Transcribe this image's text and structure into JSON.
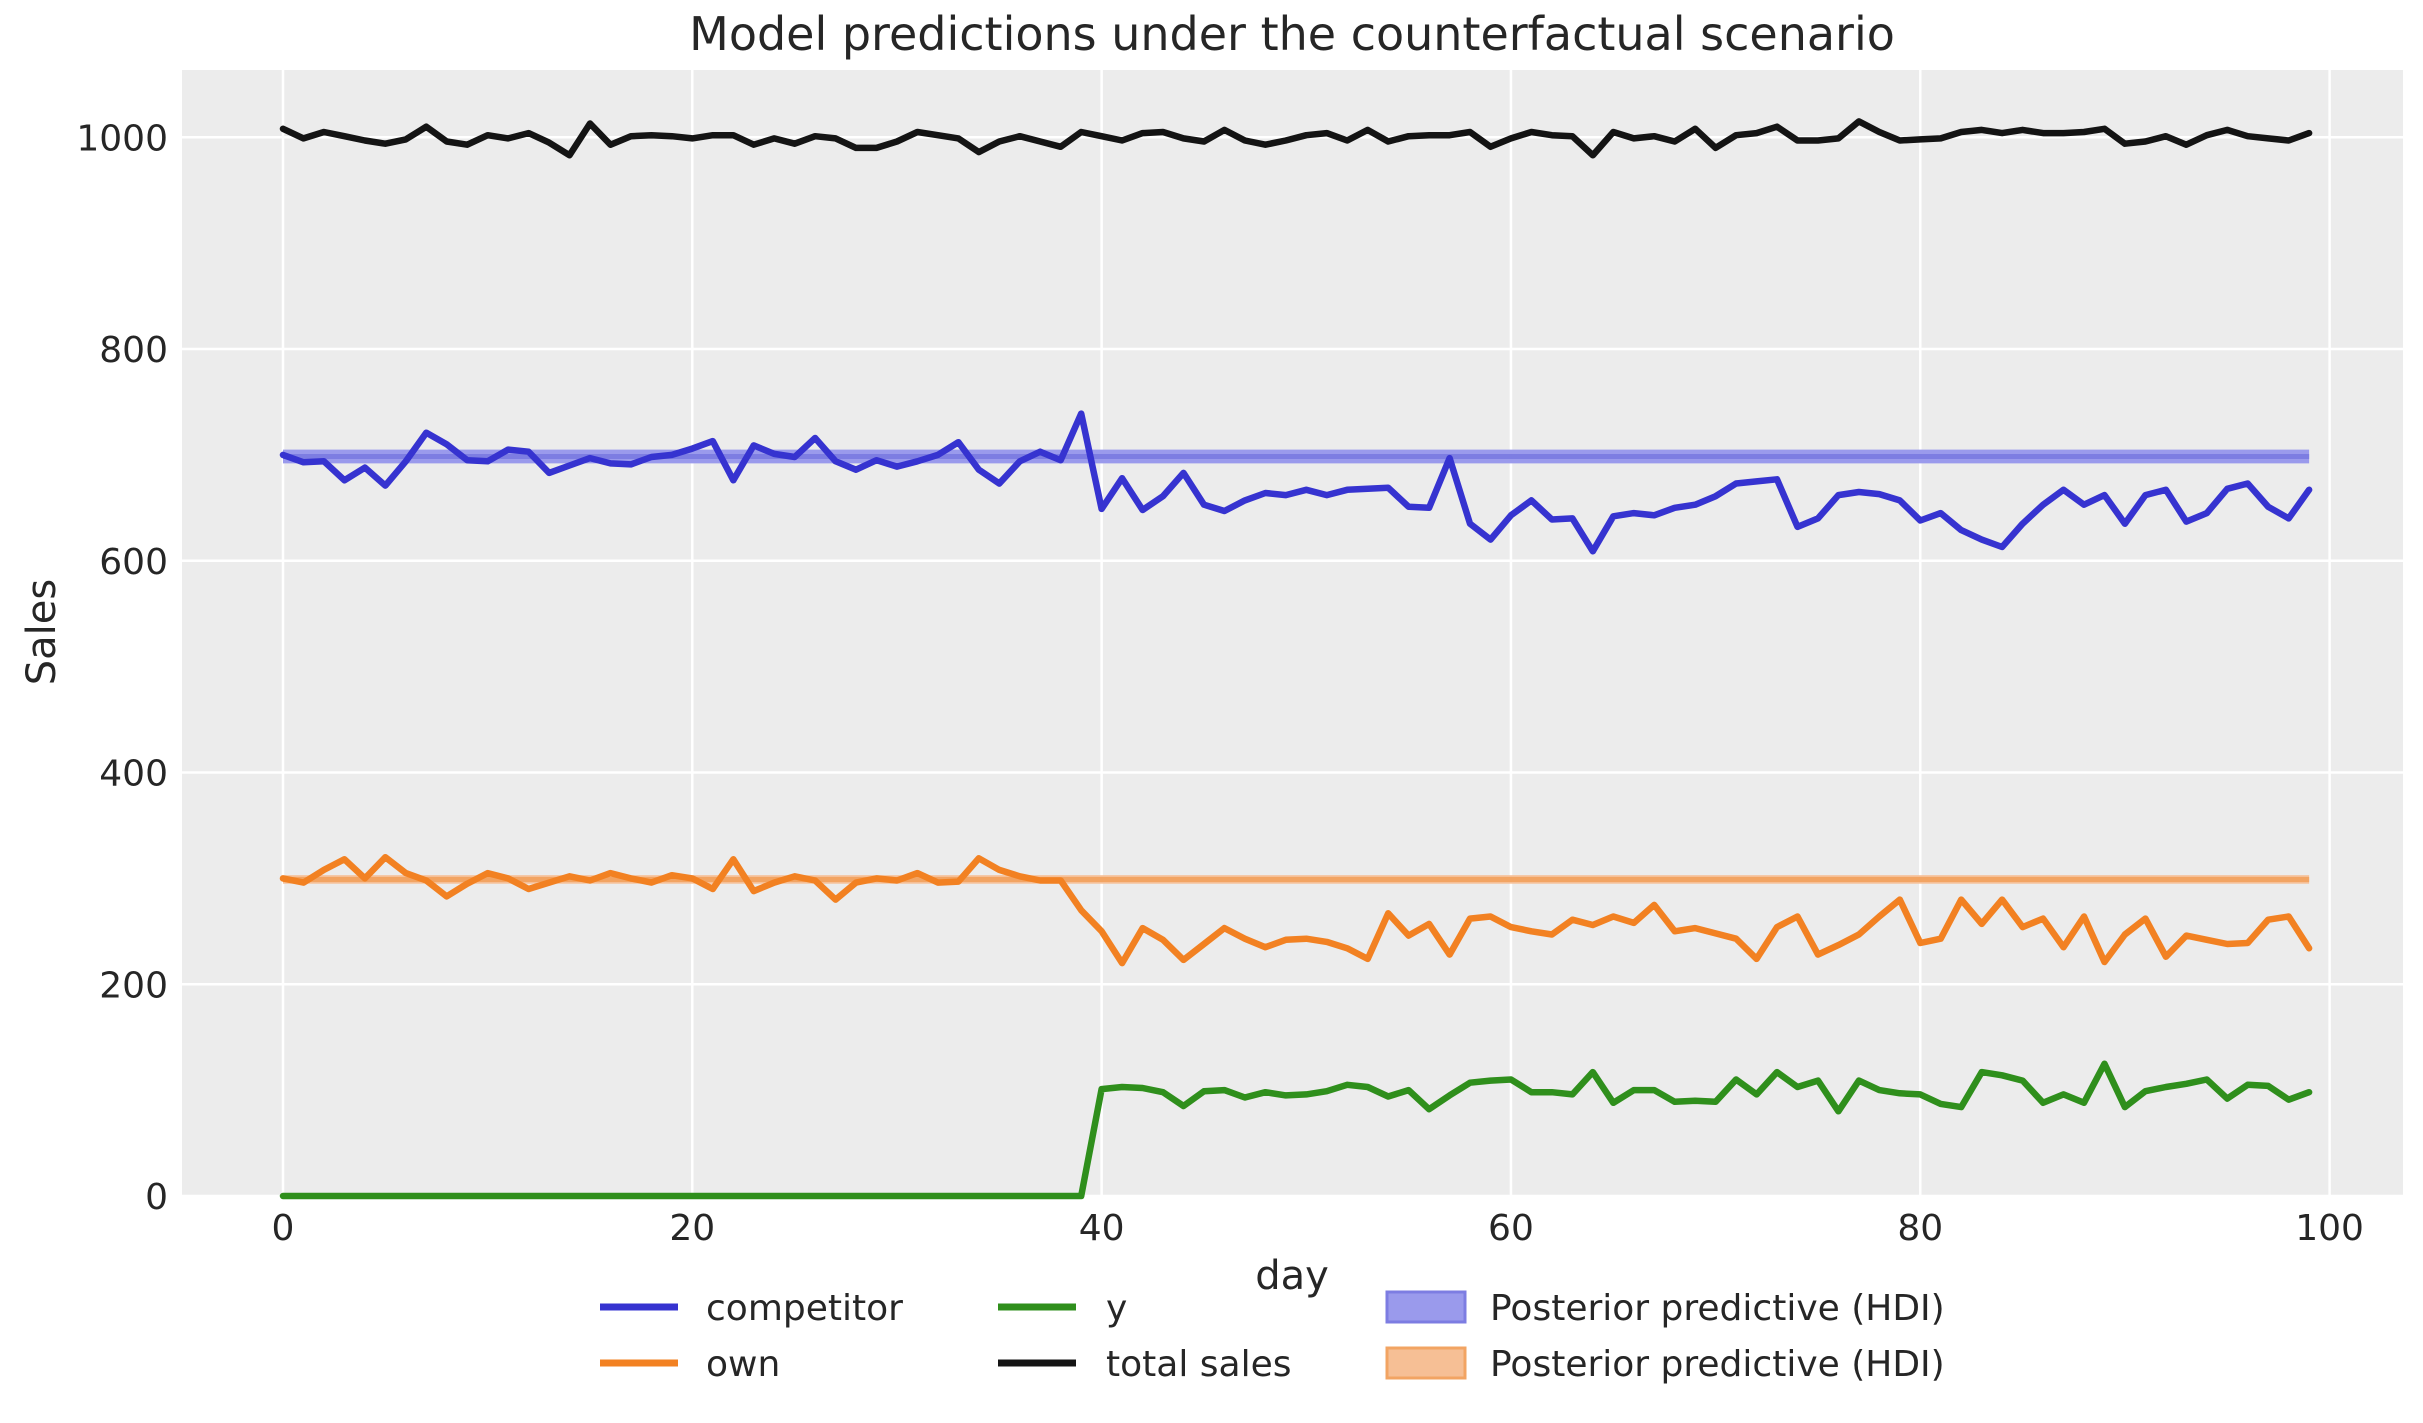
{
  "title": "Model predictions under the counterfactual scenario",
  "axes": {
    "xlabel": "day",
    "ylabel": "Sales",
    "x_ticks": [
      0,
      20,
      40,
      60,
      80,
      100
    ],
    "y_ticks": [
      0,
      200,
      400,
      600,
      800,
      1000
    ]
  },
  "colors": {
    "competitor": "#3633d0",
    "own": "#f28122",
    "y": "#2f8f1c",
    "total_sales": "#141414",
    "hdi_blue": "#9a9aec",
    "hdi_blue_line": "#7d7de2",
    "hdi_orange": "#f6bf95",
    "hdi_orange_line": "#f2a463",
    "axes_bg": "#ececec",
    "grid": "#ffffff",
    "text": "#262626"
  },
  "legend": {
    "rows": [
      [
        {
          "swatch": "line",
          "color_key": "competitor",
          "label": "competitor"
        },
        {
          "swatch": "line",
          "color_key": "y",
          "label": "y"
        },
        {
          "swatch": "patch",
          "color_key": "hdi_blue",
          "label": "Posterior predictive (HDI)"
        }
      ],
      [
        {
          "swatch": "line",
          "color_key": "own",
          "label": "own"
        },
        {
          "swatch": "line",
          "color_key": "total_sales",
          "label": "total sales"
        },
        {
          "swatch": "patch",
          "color_key": "hdi_orange",
          "label": "Posterior predictive (HDI)"
        }
      ]
    ]
  },
  "chart_data": {
    "type": "line",
    "title": "Model predictions under the counterfactual scenario",
    "xlabel": "day",
    "ylabel": "Sales",
    "xlim": [
      -5,
      103.6
    ],
    "ylim": [
      0,
      1063
    ],
    "grid": true,
    "legend_position": "bottom",
    "x": [
      0,
      1,
      2,
      3,
      4,
      5,
      6,
      7,
      8,
      9,
      10,
      11,
      12,
      13,
      14,
      15,
      16,
      17,
      18,
      19,
      20,
      21,
      22,
      23,
      24,
      25,
      26,
      27,
      28,
      29,
      30,
      31,
      32,
      33,
      34,
      35,
      36,
      37,
      38,
      39,
      40,
      41,
      42,
      43,
      44,
      45,
      46,
      47,
      48,
      49,
      50,
      51,
      52,
      53,
      54,
      55,
      56,
      57,
      58,
      59,
      60,
      61,
      62,
      63,
      64,
      65,
      66,
      67,
      68,
      69,
      70,
      71,
      72,
      73,
      74,
      75,
      76,
      77,
      78,
      79,
      80,
      81,
      82,
      83,
      84,
      85,
      86,
      87,
      88,
      89,
      90,
      91,
      92,
      93,
      94,
      95,
      96,
      97,
      98,
      99
    ],
    "series": [
      {
        "name": "competitor",
        "color_key": "competitor",
        "values": [
          700,
          693,
          694,
          676,
          688,
          671,
          694,
          721,
          710,
          695,
          694,
          705,
          703,
          683,
          690,
          697,
          692,
          691,
          698,
          700,
          706,
          713,
          676,
          709,
          701,
          698,
          716,
          694,
          686,
          695,
          689,
          694,
          700,
          712,
          686,
          673,
          694,
          703,
          695,
          739,
          649,
          678,
          648,
          661,
          683,
          653,
          647,
          657,
          664,
          662,
          667,
          662,
          667,
          668,
          669,
          651,
          650,
          697,
          635,
          620,
          643,
          657,
          639,
          640,
          609,
          642,
          645,
          643,
          650,
          653,
          661,
          673,
          675,
          677,
          632,
          640,
          662,
          665,
          663,
          657,
          638,
          645,
          629,
          620,
          613,
          635,
          653,
          667,
          653,
          662,
          635,
          662,
          667,
          637,
          645,
          668,
          673,
          651,
          640,
          667
        ]
      },
      {
        "name": "own",
        "color_key": "own",
        "values": [
          300,
          296,
          308,
          318,
          300,
          320,
          305,
          298,
          283,
          295,
          305,
          300,
          290,
          296,
          302,
          298,
          305,
          300,
          296,
          303,
          300,
          290,
          318,
          288,
          296,
          302,
          298,
          280,
          296,
          300,
          298,
          305,
          296,
          297,
          319,
          308,
          302,
          298,
          298,
          270,
          250,
          220,
          253,
          242,
          223,
          238,
          253,
          243,
          235,
          242,
          243,
          240,
          234,
          224,
          267,
          246,
          257,
          228,
          262,
          264,
          254,
          250,
          247,
          261,
          256,
          264,
          258,
          275,
          250,
          253,
          248,
          243,
          224,
          254,
          264,
          228,
          237,
          247,
          264,
          280,
          239,
          243,
          280,
          257,
          280,
          254,
          262,
          235,
          264,
          221,
          247,
          262,
          226,
          246,
          242,
          238,
          239,
          261,
          264,
          234
        ]
      },
      {
        "name": "y",
        "color_key": "y",
        "values": [
          0,
          0,
          0,
          0,
          0,
          0,
          0,
          0,
          0,
          0,
          0,
          0,
          0,
          0,
          0,
          0,
          0,
          0,
          0,
          0,
          0,
          0,
          0,
          0,
          0,
          0,
          0,
          0,
          0,
          0,
          0,
          0,
          0,
          0,
          0,
          0,
          0,
          0,
          0,
          0,
          101,
          103,
          102,
          98,
          85,
          99,
          100,
          93,
          98,
          95,
          96,
          99,
          105,
          103,
          94,
          100,
          82,
          95,
          107,
          109,
          110,
          98,
          98,
          96,
          117,
          88,
          100,
          100,
          89,
          90,
          89,
          110,
          96,
          117,
          103,
          109,
          80,
          109,
          100,
          97,
          96,
          87,
          84,
          117,
          114,
          109,
          88,
          96,
          88,
          125,
          84,
          99,
          103,
          106,
          110,
          92,
          105,
          104,
          91,
          98
        ]
      },
      {
        "name": "total sales",
        "color_key": "total_sales",
        "values": [
          1008,
          999,
          1005,
          1001,
          997,
          994,
          998,
          1010,
          996,
          993,
          1002,
          999,
          1004,
          995,
          983,
          1013,
          993,
          1001,
          1002,
          1001,
          999,
          1002,
          1002,
          993,
          999,
          994,
          1001,
          999,
          990,
          990,
          996,
          1005,
          1002,
          999,
          986,
          996,
          1001,
          996,
          991,
          1005,
          1001,
          997,
          1004,
          1005,
          999,
          996,
          1007,
          997,
          993,
          997,
          1002,
          1004,
          997,
          1007,
          996,
          1001,
          1002,
          1002,
          1005,
          991,
          999,
          1005,
          1002,
          1001,
          983,
          1005,
          999,
          1001,
          996,
          1008,
          990,
          1002,
          1004,
          1010,
          997,
          997,
          999,
          1015,
          1005,
          997,
          998,
          999,
          1005,
          1007,
          1004,
          1007,
          1004,
          1004,
          1005,
          1008,
          994,
          996,
          1001,
          993,
          1002,
          1007,
          1001,
          999,
          997,
          1004
        ]
      }
    ],
    "hdi_bands": [
      {
        "name": "Posterior predictive (HDI)",
        "for_series": "competitor",
        "lower": 692,
        "upper": 705,
        "mean": 698.5,
        "fill_key": "hdi_blue",
        "line_key": "hdi_blue_line",
        "x_start": 0,
        "x_end": 99
      },
      {
        "name": "Posterior predictive (HDI)",
        "for_series": "own",
        "lower": 295,
        "upper": 303,
        "mean": 299,
        "fill_key": "hdi_orange",
        "line_key": "hdi_orange_line",
        "x_start": 0,
        "x_end": 99
      }
    ]
  }
}
